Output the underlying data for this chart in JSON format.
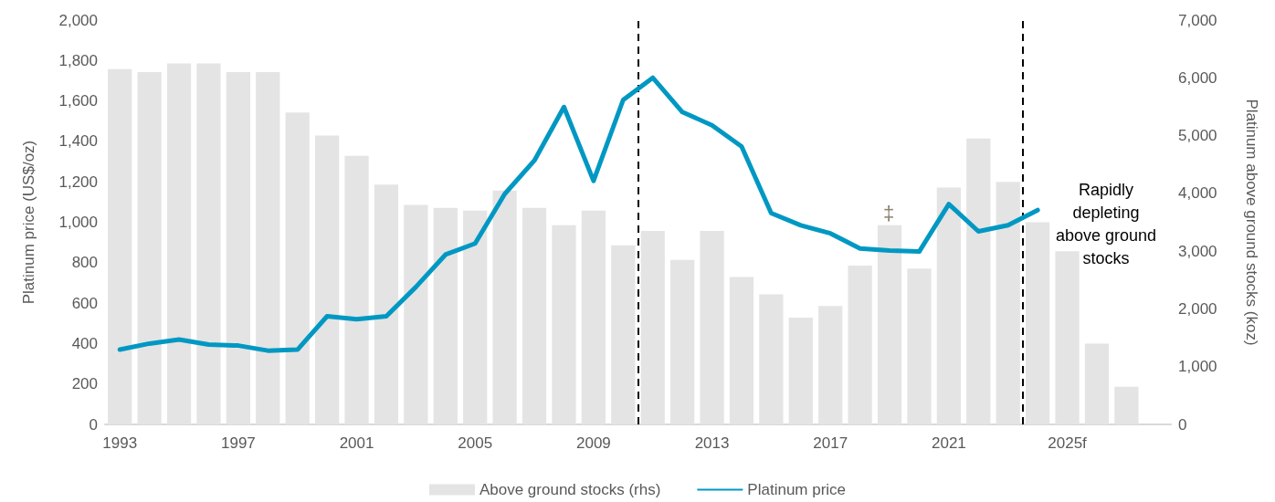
{
  "chart_data": {
    "type": "bar",
    "ylabel": "Platinum price (US$/oz)",
    "y2label": "Platinum above ground stocks (koz)",
    "x": [
      1993,
      1994,
      1995,
      1996,
      1997,
      1998,
      1999,
      2000,
      2001,
      2002,
      2003,
      2004,
      2005,
      2006,
      2007,
      2008,
      2009,
      2010,
      2011,
      2012,
      2013,
      2014,
      2015,
      2016,
      2017,
      2018,
      2019,
      2020,
      2021,
      2022,
      2023,
      2024,
      2025,
      2026,
      2027
    ],
    "xlim": [
      1992.5,
      2028.5
    ],
    "xticks": [
      1993,
      1997,
      2001,
      2005,
      2009,
      2013,
      2017,
      2021,
      {
        "value": 2025,
        "label": "2025f"
      }
    ],
    "ylim": [
      0,
      2000
    ],
    "yticks": [
      0,
      200,
      400,
      600,
      800,
      {
        "value": 1000,
        "label": "1,000"
      },
      {
        "value": 1200,
        "label": "1,200"
      },
      {
        "value": 1400,
        "label": "1,400"
      },
      {
        "value": 1600,
        "label": "1,600"
      },
      {
        "value": 1800,
        "label": "1,800"
      },
      {
        "value": 2000,
        "label": "2,000"
      }
    ],
    "y2lim": [
      0,
      7000
    ],
    "y2ticks": [
      0,
      {
        "value": 1000,
        "label": "1,000"
      },
      {
        "value": 2000,
        "label": "2,000"
      },
      {
        "value": 3000,
        "label": "3,000"
      },
      {
        "value": 4000,
        "label": "4,000"
      },
      {
        "value": 5000,
        "label": "5,000"
      },
      {
        "value": 6000,
        "label": "6,000"
      },
      {
        "value": 7000,
        "label": "7,000"
      }
    ],
    "series": [
      {
        "name": "Above ground stocks (rhs)",
        "axis": "y2",
        "color": "#e4e4e4",
        "values": [
          6150,
          6100,
          6250,
          6250,
          6100,
          6100,
          5400,
          5000,
          4650,
          4150,
          3800,
          3750,
          3700,
          4050,
          3750,
          3450,
          3700,
          3100,
          3350,
          2850,
          3350,
          2550,
          2250,
          1850,
          2050,
          2750,
          3450,
          2700,
          4100,
          4950,
          4200,
          3500,
          3000,
          1400,
          650
        ]
      },
      {
        "name": "Platinum price",
        "type": "line",
        "color": "#0098c3",
        "x": [
          1993,
          1994,
          1995,
          1996,
          1997,
          1998,
          1999,
          2000,
          2001,
          2002,
          2003,
          2004,
          2005,
          2006,
          2007,
          2008,
          2009,
          2010,
          2011,
          2012,
          2013,
          2014,
          2015,
          2016,
          2017,
          2018,
          2019,
          2020,
          2021,
          2022,
          2023,
          2024
        ],
        "values": [
          370,
          400,
          420,
          395,
          390,
          365,
          370,
          535,
          520,
          535,
          680,
          840,
          895,
          1140,
          1305,
          1570,
          1205,
          1605,
          1715,
          1545,
          1480,
          1375,
          1045,
          985,
          945,
          870,
          860,
          855,
          1090,
          955,
          985,
          1060
        ]
      }
    ],
    "ref_lines": [
      {
        "axis": "x",
        "value": 2010.5,
        "color": "#000000",
        "line_style": "dashed"
      },
      {
        "axis": "x",
        "value": 2023.5,
        "color": "#000000",
        "line_style": "dashed"
      }
    ],
    "annotations": [
      "‡",
      "Rapidly\ndepleting\nabove ground\nstocks"
    ],
    "grid": false,
    "legend": "bottom",
    "marker": "none",
    "line_style": "solid"
  }
}
